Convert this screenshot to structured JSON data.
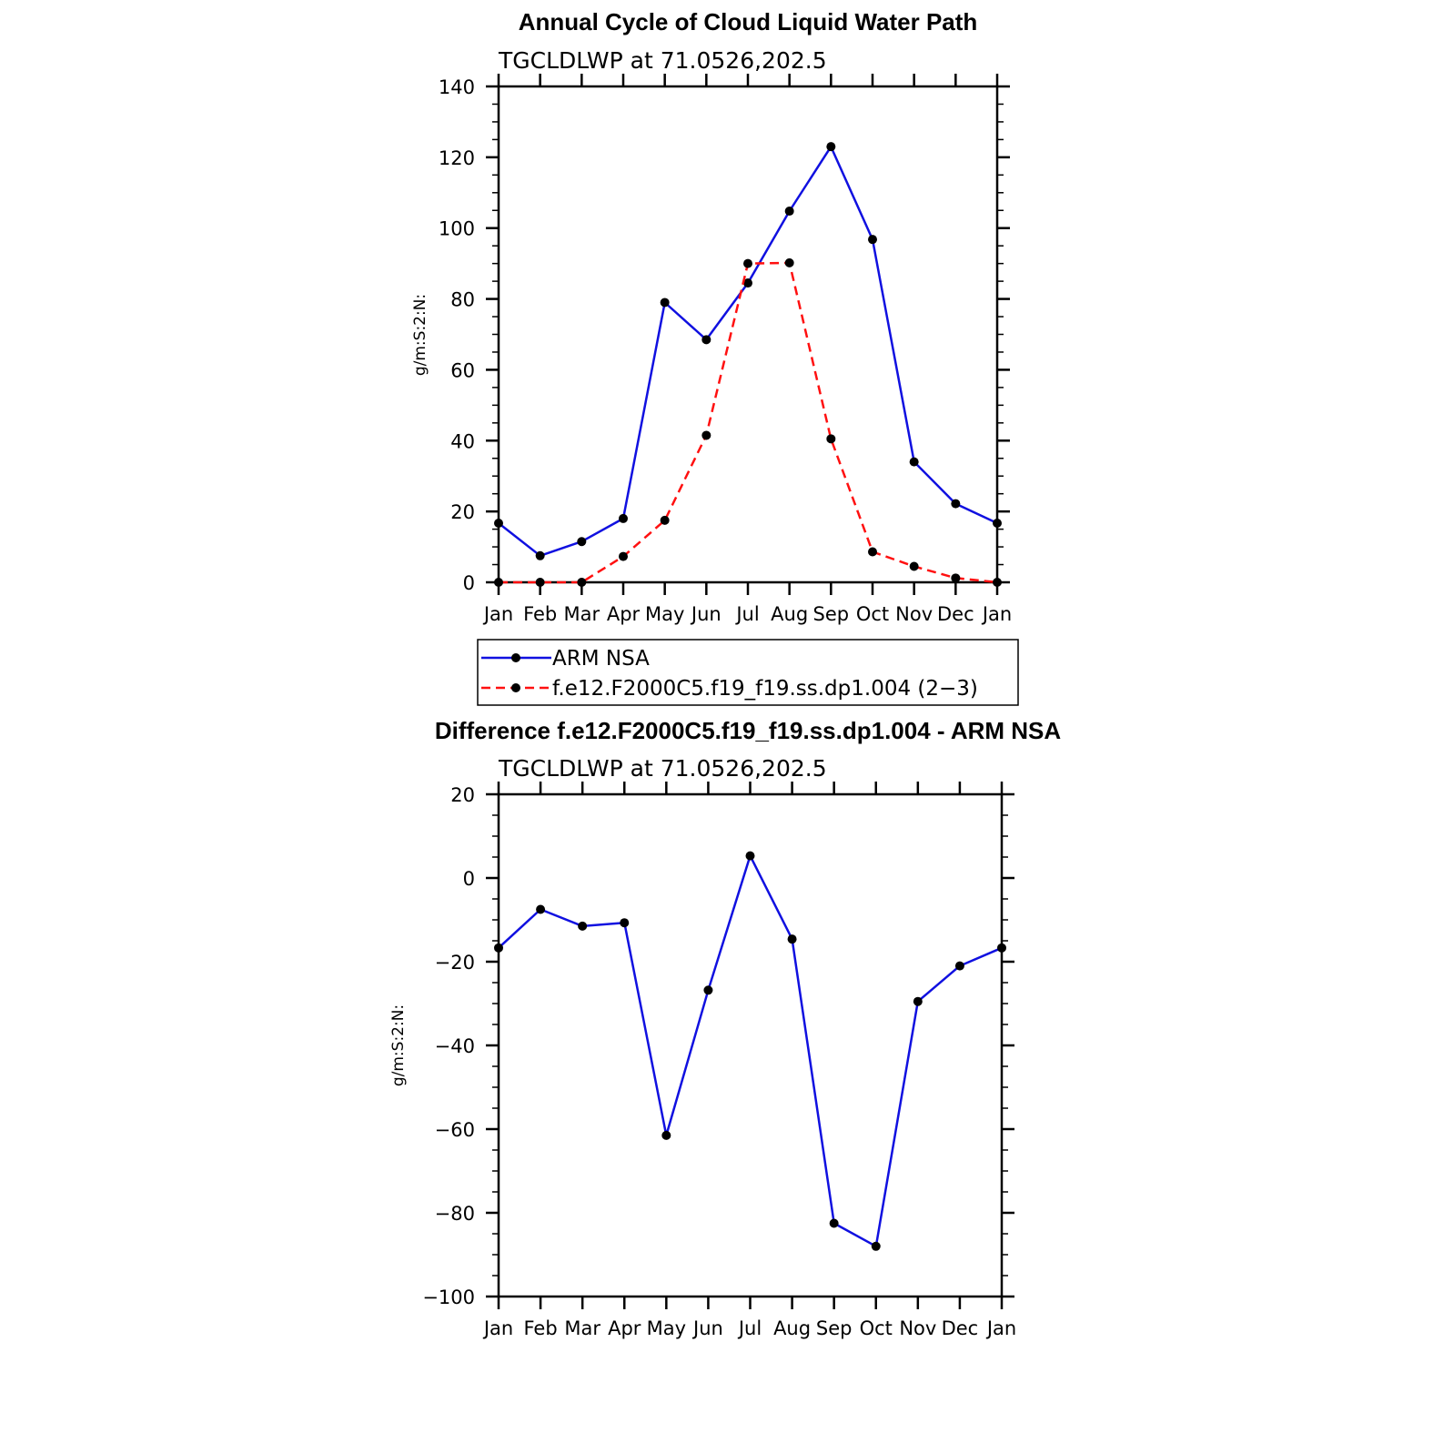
{
  "chart_data": [
    {
      "type": "line",
      "title": "Annual Cycle of Cloud Liquid Water Path",
      "subtitle": "TGCLDLWP  at  71.0526,202.5",
      "ylabel": "g/m:S:2:N:",
      "categories": [
        "Jan",
        "Feb",
        "Mar",
        "Apr",
        "May",
        "Jun",
        "Jul",
        "Aug",
        "Sep",
        "Oct",
        "Nov",
        "Dec",
        "Jan"
      ],
      "ylim": [
        0,
        140
      ],
      "yticks": [
        0,
        20,
        40,
        60,
        80,
        100,
        120,
        140
      ],
      "series": [
        {
          "name": "ARM  NSA",
          "color": "#1010e0",
          "dash": "solid",
          "values": [
            16.7,
            7.5,
            11.5,
            18.0,
            79.0,
            68.5,
            84.5,
            104.8,
            123.0,
            96.8,
            34.0,
            22.2,
            16.7
          ]
        },
        {
          "name": "f.e12.F2000C5.f19_f19.ss.dp1.004 (2−3)",
          "color": "#ff1010",
          "dash": "dashed",
          "values": [
            0.0,
            0.0,
            0.0,
            7.3,
            17.5,
            41.5,
            90.0,
            90.2,
            40.5,
            8.6,
            4.5,
            1.2,
            0.0
          ]
        }
      ],
      "legend": "bottom"
    },
    {
      "type": "line",
      "title": "Difference f.e12.F2000C5.f19_f19.ss.dp1.004 - ARM NSA",
      "subtitle": "TGCLDLWP  at  71.0526,202.5",
      "ylabel": "g/m:S:2:N:",
      "categories": [
        "Jan",
        "Feb",
        "Mar",
        "Apr",
        "May",
        "Jun",
        "Jul",
        "Aug",
        "Sep",
        "Oct",
        "Nov",
        "Dec",
        "Jan"
      ],
      "ylim": [
        -100,
        20
      ],
      "yticks": [
        -100,
        -80,
        -60,
        -40,
        -20,
        0,
        20
      ],
      "ytick_labels": [
        "−100",
        "−80",
        "−60",
        "−40",
        "−20",
        "0",
        "20"
      ],
      "series": [
        {
          "color": "#1010e0",
          "dash": "solid",
          "values": [
            -16.7,
            -7.5,
            -11.5,
            -10.7,
            -61.5,
            -26.8,
            5.3,
            -14.6,
            -82.5,
            -88.0,
            -29.5,
            -21.0,
            -16.7
          ]
        }
      ]
    }
  ]
}
